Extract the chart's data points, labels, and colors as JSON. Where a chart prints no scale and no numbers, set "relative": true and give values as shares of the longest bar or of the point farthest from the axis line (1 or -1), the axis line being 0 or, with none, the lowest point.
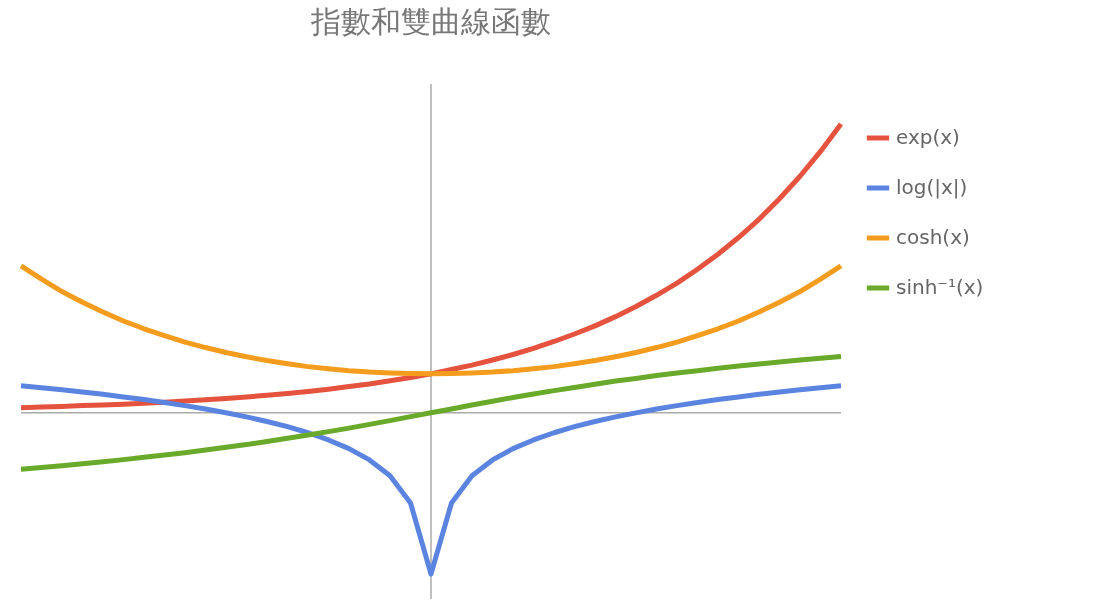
{
  "chart_data": {
    "type": "line",
    "title": "指數和雙曲線函數",
    "relative": true,
    "legend": "right",
    "line_style": "solid",
    "marker": "none",
    "categories": [
      null,
      null,
      null,
      null,
      null,
      null,
      null,
      null,
      null,
      null,
      null,
      null,
      null,
      null,
      null,
      null,
      null,
      null,
      null,
      null,
      null,
      null,
      null,
      null,
      null,
      null,
      null,
      null,
      null,
      null,
      null,
      null,
      null,
      null,
      null,
      null,
      null,
      null,
      null,
      null,
      null
    ],
    "series": [
      {
        "name": "exp(x)",
        "color": "#e5533f",
        "values": [
          0.018,
          0.02,
          0.022,
          0.025,
          0.027,
          0.03,
          0.033,
          0.037,
          0.041,
          0.045,
          0.05,
          0.055,
          0.061,
          0.067,
          0.074,
          0.082,
          0.091,
          0.1,
          0.111,
          0.122,
          0.135,
          0.15,
          0.165,
          0.183,
          0.202,
          0.223,
          0.247,
          0.273,
          0.301,
          0.333,
          0.368,
          0.407,
          0.449,
          0.497,
          0.549,
          0.607,
          0.67,
          0.741,
          0.819,
          0.905,
          1
        ]
      },
      {
        "name": "log(|x|)",
        "color": "#5b84e0",
        "values": [
          0.094,
          0.087,
          0.08,
          0.072,
          0.064,
          0.055,
          0.046,
          0.036,
          0.025,
          0.013,
          0,
          -0.014,
          -0.03,
          -0.048,
          -0.069,
          -0.094,
          -0.124,
          -0.163,
          -0.218,
          -0.312,
          -0.558,
          -0.312,
          -0.218,
          -0.163,
          -0.124,
          -0.094,
          -0.069,
          -0.048,
          -0.03,
          -0.014,
          0,
          0.013,
          0.025,
          0.036,
          0.046,
          0.055,
          0.064,
          0.072,
          0.08,
          0.087,
          0.094
        ]
      },
      {
        "name": "cosh(x)",
        "color": "#f39c1e",
        "values": [
          0.509,
          0.463,
          0.42,
          0.383,
          0.349,
          0.318,
          0.291,
          0.267,
          0.245,
          0.226,
          0.209,
          0.194,
          0.181,
          0.17,
          0.16,
          0.153,
          0.146,
          0.141,
          0.138,
          0.136,
          0.135,
          0.136,
          0.138,
          0.141,
          0.146,
          0.153,
          0.16,
          0.17,
          0.181,
          0.194,
          0.209,
          0.226,
          0.245,
          0.267,
          0.291,
          0.318,
          0.349,
          0.383,
          0.42,
          0.463,
          0.509
        ]
      },
      {
        "name": "sinh⁻¹(x)",
        "color": "#6aaa2a",
        "values": [
          -0.195,
          -0.189,
          -0.183,
          -0.176,
          -0.169,
          -0.162,
          -0.154,
          -0.146,
          -0.138,
          -0.129,
          -0.119,
          -0.11,
          -0.099,
          -0.088,
          -0.077,
          -0.065,
          -0.053,
          -0.04,
          -0.027,
          -0.013,
          0,
          0.013,
          0.027,
          0.04,
          0.053,
          0.065,
          0.077,
          0.088,
          0.099,
          0.11,
          0.119,
          0.129,
          0.138,
          0.146,
          0.154,
          0.162,
          0.169,
          0.176,
          0.183,
          0.189,
          0.195
        ]
      }
    ]
  }
}
